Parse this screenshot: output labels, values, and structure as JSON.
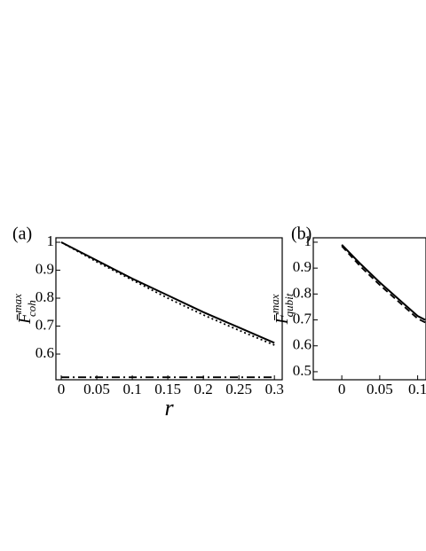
{
  "chart_data": [
    {
      "type": "line",
      "label": "(a)",
      "ylabel": {
        "main": "F̄",
        "sup": "max",
        "sub": "coh"
      },
      "xlabel": "r",
      "x": [
        0,
        0.05,
        0.1,
        0.15,
        0.2,
        0.25,
        0.3
      ],
      "series": [
        {
          "color": "#000000",
          "style": "solid",
          "values": [
            1,
            0.935,
            0.87,
            0.81,
            0.75,
            0.695,
            0.64
          ]
        },
        {
          "color": "#000000",
          "style": "dotted",
          "values": [
            1,
            0.93,
            0.865,
            0.8,
            0.74,
            0.685,
            0.632
          ]
        },
        {
          "color": "#000000",
          "style": "dashdot",
          "values": [
            0.517,
            0.517,
            0.517,
            0.517,
            0.517,
            0.517,
            0.517
          ]
        }
      ],
      "xlim": [
        -0.0075,
        0.311
      ],
      "ylim": [
        0.508,
        1.016
      ],
      "xticks": [
        0,
        0.05,
        0.1,
        0.15,
        0.2,
        0.25,
        0.3
      ],
      "yticks": [
        0.6,
        0.7,
        0.8,
        0.9,
        1
      ]
    },
    {
      "type": "line",
      "label": "(b)",
      "ylabel": {
        "main": "F̄",
        "sup": "max",
        "sub": "qubit"
      },
      "x": [
        0,
        0.025,
        0.05,
        0.075,
        0.1,
        0.11
      ],
      "series": [
        {
          "color": "#000000",
          "style": "solid",
          "values": [
            0.99,
            0.915,
            0.845,
            0.78,
            0.715,
            0.7
          ]
        },
        {
          "color": "#000000",
          "style": "dashed",
          "values": [
            0.985,
            0.905,
            0.835,
            0.77,
            0.705,
            0.69
          ]
        }
      ],
      "xlim": [
        -0.0376,
        0.111
      ],
      "ylim": [
        0.469,
        1.017
      ],
      "xticks": [
        0,
        0.05,
        0.1
      ],
      "yticks": [
        0.5,
        0.6,
        0.7,
        0.8,
        0.9,
        1
      ]
    }
  ]
}
